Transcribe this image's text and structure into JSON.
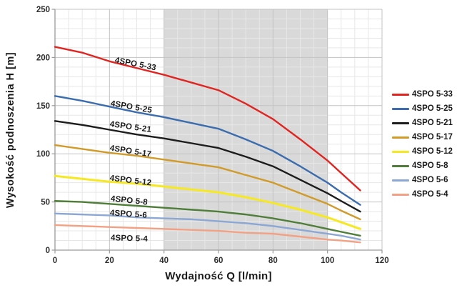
{
  "chart_data": {
    "type": "line",
    "title": "",
    "xlabel": "Wydajność Q [l/min]",
    "ylabel": "Wysokość podnoszenia H [m]",
    "xlim": [
      0,
      120
    ],
    "ylim": [
      0,
      250
    ],
    "x_ticks": [
      0,
      20,
      40,
      60,
      80,
      100,
      120
    ],
    "y_ticks": [
      0,
      50,
      100,
      150,
      200,
      250
    ],
    "x_minor_step": 5,
    "y_minor_step": 10,
    "grid": true,
    "legend_position": "right",
    "highlight_band": {
      "x_from": 40,
      "x_to": 100,
      "color": "#d9d9d9"
    },
    "colors": {
      "background": "#ffffff",
      "minor_grid": "#e7e7e7",
      "major_grid": "#c3c3c3",
      "axis": "#9a9a9a",
      "text": "#1a1a1a"
    },
    "x": [
      0,
      10,
      20,
      30,
      40,
      50,
      60,
      70,
      80,
      90,
      100,
      105,
      112
    ],
    "series": [
      {
        "name": "4SPO 5-33",
        "color": "#e02521",
        "values": [
          211,
          205,
          196,
          189,
          182,
          174,
          166,
          152,
          136,
          115,
          93,
          80,
          62
        ]
      },
      {
        "name": "4SPO 5-25",
        "color": "#3a6cae",
        "values": [
          160,
          155,
          149,
          143,
          138,
          132,
          126,
          115,
          103,
          87,
          70,
          60,
          47
        ]
      },
      {
        "name": "4SPO 5-21",
        "color": "#1c1c1c",
        "values": [
          134,
          130,
          125,
          120,
          116,
          111,
          106,
          97,
          87,
          73,
          59,
          51,
          40
        ]
      },
      {
        "name": "4SPO 5-17",
        "color": "#d19b2a",
        "values": [
          109,
          105,
          101,
          98,
          94,
          90,
          86,
          78,
          70,
          59,
          48,
          41,
          32
        ]
      },
      {
        "name": "4SPO 5-12",
        "color": "#f6e821",
        "values": [
          77,
          74,
          71,
          69,
          66,
          63,
          60,
          55,
          49,
          42,
          34,
          29,
          22
        ]
      },
      {
        "name": "4SPO 5-8",
        "color": "#4e7e38",
        "values": [
          51,
          50,
          48,
          46,
          44,
          42,
          40,
          37,
          33,
          28,
          22,
          19,
          15
        ]
      },
      {
        "name": "4SPO 5-6",
        "color": "#8ca7d3",
        "values": [
          38,
          37,
          36,
          34,
          33,
          32,
          30,
          28,
          25,
          21,
          17,
          15,
          11
        ]
      },
      {
        "name": "4SPO 5-4",
        "color": "#f2a184",
        "values": [
          26,
          25,
          24,
          23,
          22,
          21,
          20,
          18,
          17,
          14,
          11,
          10,
          8
        ]
      }
    ]
  }
}
